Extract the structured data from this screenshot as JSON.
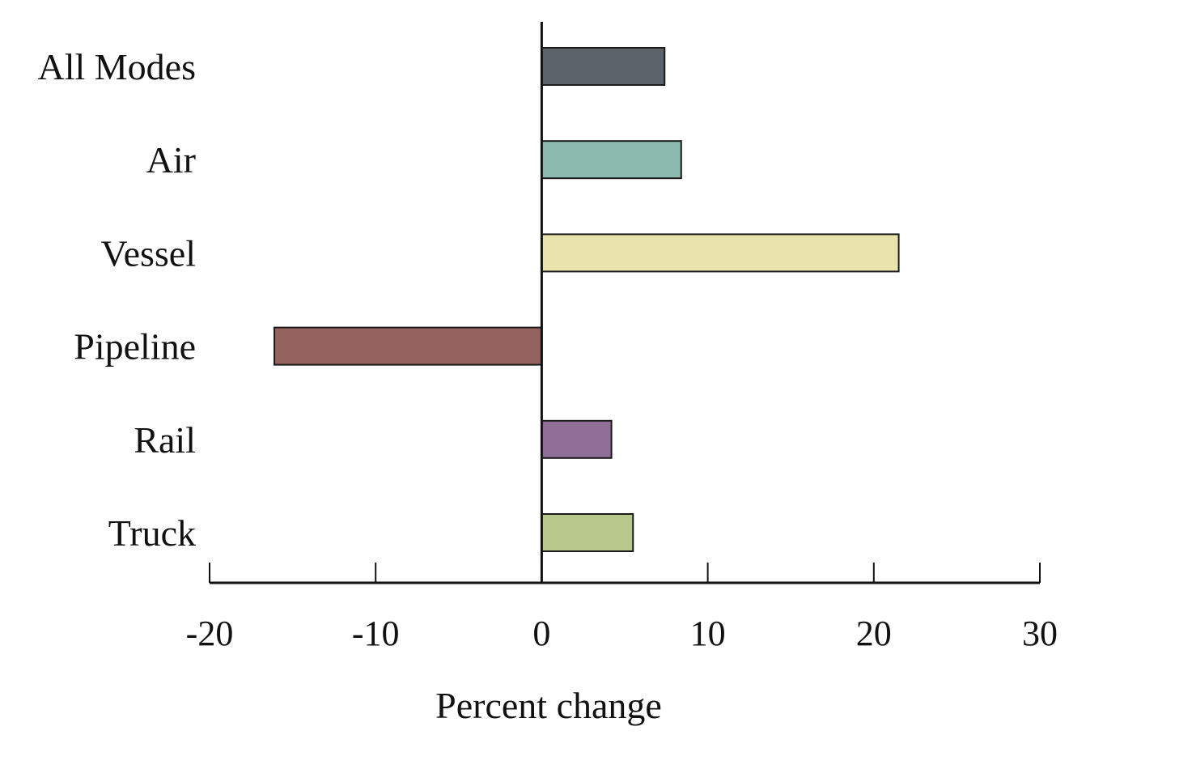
{
  "chart_data": {
    "type": "bar",
    "orientation": "horizontal",
    "categories": [
      "All Modes",
      "Air",
      "Vessel",
      "Pipeline",
      "Rail",
      "Truck"
    ],
    "values": [
      7.4,
      8.4,
      21.5,
      -16.1,
      4.2,
      5.5
    ],
    "colors": [
      "#5d6469",
      "#8dbaaf",
      "#e9e3ad",
      "#94635d",
      "#8f6f98",
      "#b8c78b"
    ],
    "xlabel": "Percent change",
    "ylabel": "",
    "xlim": [
      -20,
      30
    ],
    "xticks": [
      "-20",
      "-10",
      "0",
      "10",
      "20",
      "30"
    ],
    "grid": false,
    "legend": "none"
  }
}
